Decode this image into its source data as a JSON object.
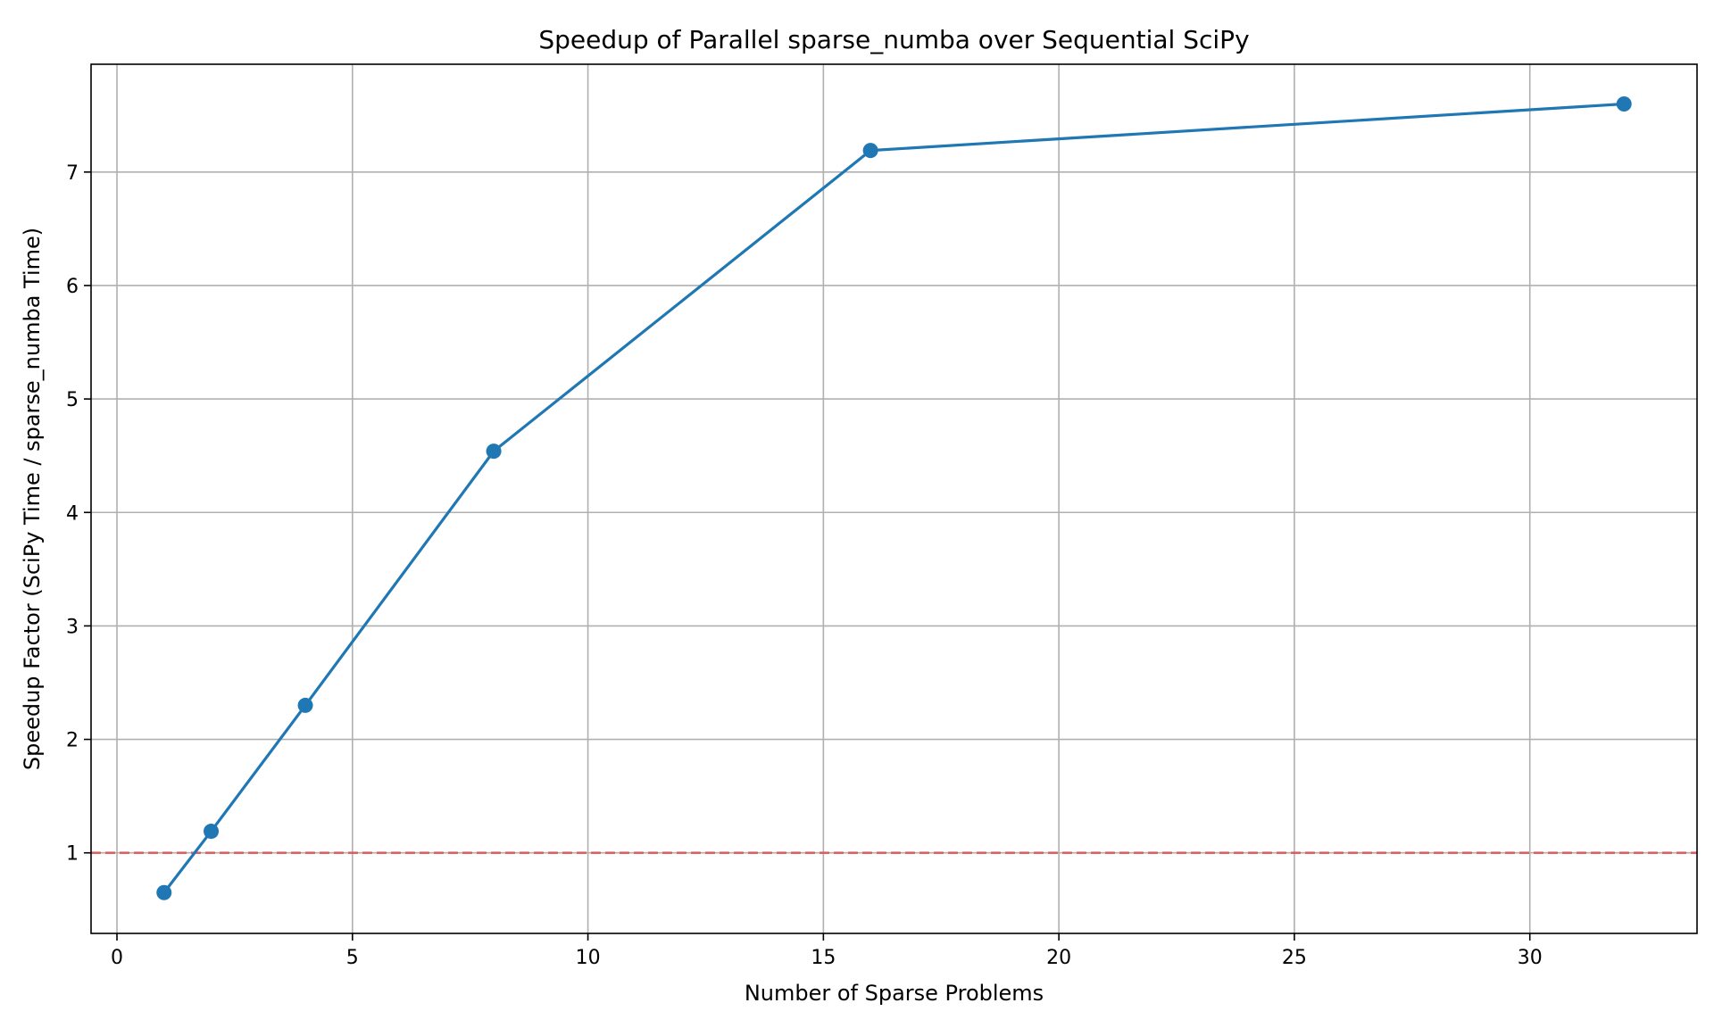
{
  "chart_data": {
    "type": "line",
    "title": "Speedup of Parallel sparse_numba over Sequential SciPy",
    "xlabel": "Number of Sparse Problems",
    "ylabel": "Speedup Factor (SciPy Time / sparse_numba Time)",
    "xlim": [
      -0.55,
      33.55
    ],
    "ylim": [
      0.29,
      7.95
    ],
    "xticks": [
      0,
      5,
      10,
      15,
      20,
      25,
      30
    ],
    "yticks": [
      1,
      2,
      3,
      4,
      5,
      6,
      7
    ],
    "grid": true,
    "series": [
      {
        "x": [
          1,
          2,
          4,
          8,
          16,
          32
        ],
        "y": [
          0.65,
          1.19,
          2.3,
          4.54,
          7.19,
          7.6
        ],
        "color": "#1f77b4",
        "marker": "circle"
      }
    ],
    "reference_line": {
      "axis": "y",
      "value": 1.0,
      "color": "#e05252",
      "style": "dashed"
    }
  }
}
